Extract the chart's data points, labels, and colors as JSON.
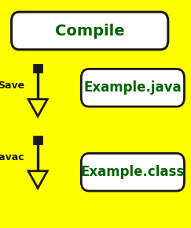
{
  "bg_color": "#ffff00",
  "box_edge_color": "#1a1a1a",
  "box_face_color": "#ffffff",
  "text_color": "#006400",
  "arrow_color": "#1a1a1a",
  "title": "Compile",
  "box1_label": "Example.java",
  "box2_label": "Example.class",
  "save_label": "Save",
  "javac_label": "javac",
  "title_fontsize": 14,
  "label_fontsize": 12,
  "arrow_label_fontsize": 9,
  "fig_w": 2.43,
  "fig_h": 2.89,
  "dpi": 100
}
